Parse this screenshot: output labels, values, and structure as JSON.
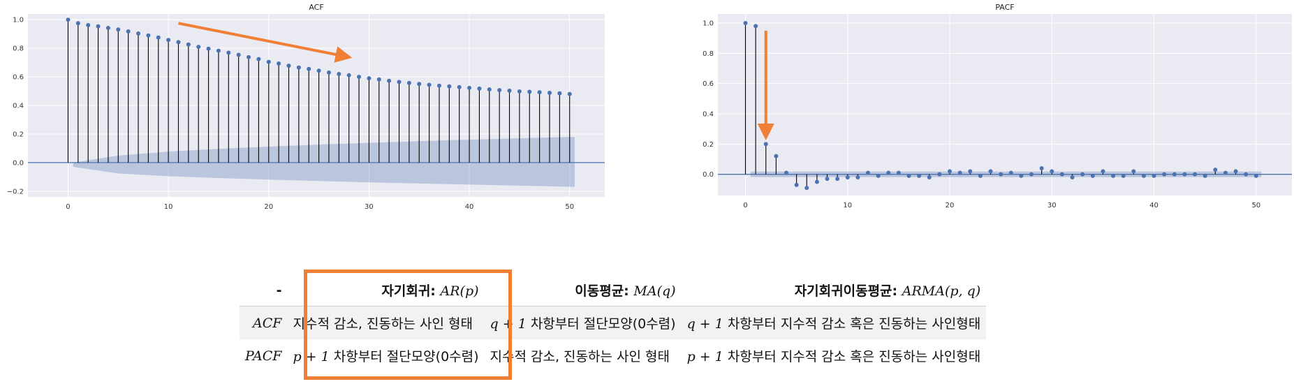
{
  "chart_data": [
    {
      "type": "stem",
      "title": "ACF",
      "xlabel": "",
      "ylabel": "",
      "xlim": [
        -4,
        53.5
      ],
      "ylim": [
        -0.24,
        1.04
      ],
      "xticks": [
        0,
        10,
        20,
        30,
        40,
        50
      ],
      "yticks": [
        -0.2,
        0.0,
        0.2,
        0.4,
        0.6,
        0.8,
        1.0
      ],
      "ytick_labels": [
        "−0.2",
        "0.0",
        "0.2",
        "0.4",
        "0.6",
        "0.8",
        "1.0"
      ],
      "grid": true,
      "x": [
        0,
        1,
        2,
        3,
        4,
        5,
        6,
        7,
        8,
        9,
        10,
        11,
        12,
        13,
        14,
        15,
        16,
        17,
        18,
        19,
        20,
        21,
        22,
        23,
        24,
        25,
        26,
        27,
        28,
        29,
        30,
        31,
        32,
        33,
        34,
        35,
        36,
        37,
        38,
        39,
        40,
        41,
        42,
        43,
        44,
        45,
        46,
        47,
        48,
        49,
        50
      ],
      "values": [
        1.0,
        0.975,
        0.962,
        0.953,
        0.942,
        0.931,
        0.918,
        0.903,
        0.89,
        0.875,
        0.858,
        0.843,
        0.826,
        0.81,
        0.797,
        0.783,
        0.769,
        0.754,
        0.738,
        0.724,
        0.705,
        0.693,
        0.678,
        0.665,
        0.655,
        0.643,
        0.63,
        0.62,
        0.611,
        0.6,
        0.59,
        0.582,
        0.572,
        0.564,
        0.557,
        0.55,
        0.544,
        0.538,
        0.533,
        0.528,
        0.523,
        0.518,
        0.512,
        0.507,
        0.503,
        0.498,
        0.495,
        0.492,
        0.488,
        0.485,
        0.48
      ],
      "confidence_band": {
        "x": [
          0.5,
          5,
          10,
          15,
          20,
          25,
          30,
          35,
          40,
          45,
          50.5
        ],
        "upper": [
          0.0,
          0.049,
          0.077,
          0.096,
          0.112,
          0.126,
          0.138,
          0.15,
          0.16,
          0.17,
          0.18
        ],
        "lower": [
          -0.03,
          -0.076,
          -0.095,
          -0.108,
          -0.119,
          -0.129,
          -0.138,
          -0.146,
          -0.154,
          -0.161,
          -0.17
        ]
      },
      "annotation": {
        "type": "arrow",
        "color": "#ee7f34",
        "from": [
          11,
          0.975
        ],
        "to": [
          27.5,
          0.745
        ]
      }
    },
    {
      "type": "stem",
      "title": "PACF",
      "xlabel": "",
      "ylabel": "",
      "xlim": [
        -2.7,
        53.5
      ],
      "ylim": [
        -0.14,
        1.06
      ],
      "xticks": [
        0,
        10,
        20,
        30,
        40,
        50
      ],
      "yticks": [
        0.0,
        0.2,
        0.4,
        0.6,
        0.8,
        1.0
      ],
      "ytick_labels": [
        "0.0",
        "0.2",
        "0.4",
        "0.6",
        "0.8",
        "1.0"
      ],
      "grid": true,
      "x": [
        0,
        1,
        2,
        3,
        4,
        5,
        6,
        7,
        8,
        9,
        10,
        11,
        12,
        13,
        14,
        15,
        16,
        17,
        18,
        19,
        20,
        21,
        22,
        23,
        24,
        25,
        26,
        27,
        28,
        29,
        30,
        31,
        32,
        33,
        34,
        35,
        36,
        37,
        38,
        39,
        40,
        41,
        42,
        43,
        44,
        45,
        46,
        47,
        48,
        49,
        50
      ],
      "values": [
        1.0,
        0.98,
        0.2,
        0.12,
        0.01,
        -0.07,
        -0.09,
        -0.05,
        -0.03,
        -0.03,
        -0.02,
        -0.02,
        0.01,
        -0.01,
        0.01,
        0.01,
        -0.01,
        -0.01,
        -0.02,
        0.0,
        0.02,
        0.01,
        0.02,
        -0.01,
        0.02,
        0.0,
        0.01,
        -0.01,
        0.0,
        0.04,
        0.02,
        0.0,
        -0.02,
        0.0,
        -0.01,
        0.02,
        -0.01,
        -0.01,
        0.02,
        -0.01,
        -0.01,
        0.0,
        0.0,
        0.0,
        0.0,
        -0.01,
        0.03,
        0.01,
        0.02,
        0.0,
        -0.01
      ],
      "confidence_band": {
        "x": [
          0.5,
          50.5
        ],
        "upper": [
          0.018,
          0.018
        ],
        "lower": [
          -0.018,
          -0.018
        ]
      },
      "annotation": {
        "type": "arrow",
        "color": "#ee7f34",
        "from": [
          2,
          0.95
        ],
        "to": [
          2,
          0.28
        ]
      }
    }
  ],
  "table": {
    "headers": [
      {
        "text": "-",
        "math": ""
      },
      {
        "text": "자기회귀: ",
        "math": "AR(p)"
      },
      {
        "text": "이동평균: ",
        "math": "MA(q)"
      },
      {
        "text": "자기회귀이동평균: ",
        "math": "ARMA(p, q)"
      }
    ],
    "rows": [
      {
        "label": "ACF",
        "cells": [
          {
            "math": "",
            "text": "지수적 감소, 진동하는 사인 형태"
          },
          {
            "math": "q + 1",
            "text": " 차항부터 절단모양(0수렴)"
          },
          {
            "math": "q + 1",
            "text": " 차항부터 지수적 감소 혹은 진동하는 사인형태"
          }
        ]
      },
      {
        "label": "PACF",
        "cells": [
          {
            "math": "p + 1",
            "text": " 차항부터 절단모양(0수렴)"
          },
          {
            "math": "",
            "text": "지수적 감소, 진동하는 사인 형태"
          },
          {
            "math": "p + 1",
            "text": " 차항부터 지수적 감소 혹은 진동하는 사인형태"
          }
        ]
      }
    ]
  },
  "colors": {
    "plot_background": "#eaeaf2",
    "grid": "#ffffff",
    "stem": "#000000",
    "marker": "#4c72b0",
    "zero_line": "#4c72b0",
    "band": "#4c72b0",
    "highlight": "#ee7f34"
  }
}
